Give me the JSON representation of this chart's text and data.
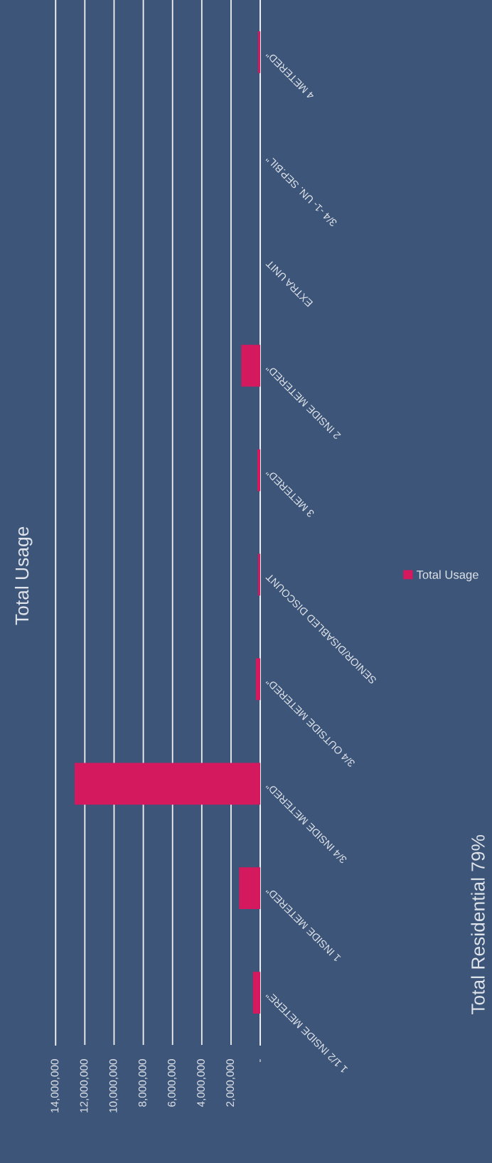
{
  "chart_data": {
    "type": "bar",
    "orientation": "horizontal",
    "title": "Total Usage",
    "annotations": [
      "Total Residential 79%"
    ],
    "categories": [
      "4 METERED\"",
      "3/4 -1- UN. SEP.BIL\"",
      "EXTRA UNIT",
      "2 INSIDE METERED\"",
      "3 METERED\"",
      "SENIOR/DISABLED DISCOUNT",
      "3/4 OUTSIDE METERED\"",
      "3/4 INSIDE METERED\"",
      "1 INSIDE METERED\"",
      "1 1/2 INSIDE METERE\""
    ],
    "series": [
      {
        "name": "Total Usage",
        "color": "#d4195f",
        "values": [
          150000,
          0,
          0,
          1300000,
          200000,
          150000,
          300000,
          12700000,
          1450000,
          500000
        ]
      }
    ],
    "xlim": [
      14000000,
      0
    ],
    "xticks": [
      {
        "value": 0,
        "label": "-"
      },
      {
        "value": 2000000,
        "label": "2,000,000"
      },
      {
        "value": 4000000,
        "label": "4,000,000"
      },
      {
        "value": 6000000,
        "label": "6,000,000"
      },
      {
        "value": 8000000,
        "label": "8,000,000"
      },
      {
        "value": 10000000,
        "label": "10,000,000"
      },
      {
        "value": 12000000,
        "label": "12,000,000"
      },
      {
        "value": 14000000,
        "label": "14,000,000"
      }
    ],
    "grid": "x",
    "legend": "right"
  }
}
